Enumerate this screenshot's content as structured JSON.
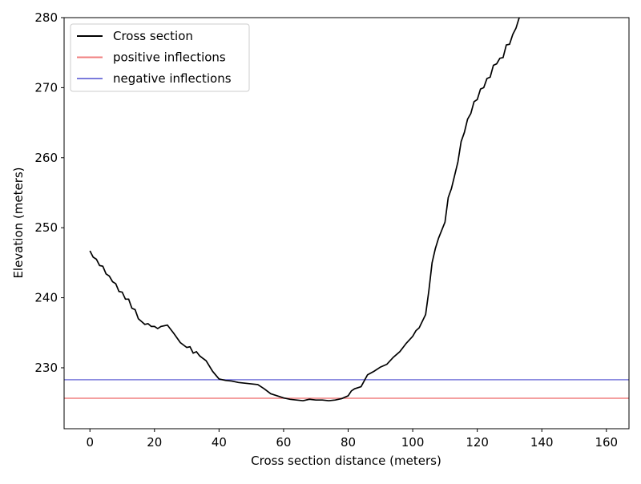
{
  "chart_data": {
    "type": "line",
    "xlabel": "Cross section distance (meters)",
    "ylabel": "Elevation (meters)",
    "x": [
      0,
      1,
      2,
      3,
      4,
      5,
      6,
      7,
      8,
      9,
      10,
      11,
      12,
      13,
      14,
      15,
      16,
      17,
      18,
      19,
      20,
      21,
      22,
      24,
      26,
      28,
      30,
      31,
      32,
      33,
      34,
      36,
      38,
      40,
      42,
      44,
      46,
      48,
      50,
      52,
      54,
      56,
      58,
      60,
      62,
      64,
      66,
      68,
      70,
      72,
      74,
      76,
      78,
      80,
      81,
      82,
      84,
      86,
      88,
      90,
      92,
      94,
      96,
      98,
      100,
      101,
      102,
      104,
      105,
      106,
      107,
      108,
      110,
      111,
      112,
      113,
      114,
      115,
      116,
      117,
      118,
      119,
      120,
      121,
      122,
      123,
      124,
      125,
      126,
      127,
      128,
      129,
      130,
      131,
      132,
      133,
      134
    ],
    "series": [
      {
        "name": "Cross section",
        "color": "#000000",
        "values": [
          246.7,
          245.8,
          245.5,
          244.6,
          244.5,
          243.4,
          243.1,
          242.3,
          242.0,
          240.9,
          240.8,
          239.8,
          239.8,
          238.5,
          238.3,
          237.0,
          236.6,
          236.2,
          236.3,
          235.9,
          235.9,
          235.6,
          235.9,
          236.1,
          234.9,
          233.6,
          232.9,
          233.0,
          232.1,
          232.3,
          231.7,
          231.0,
          229.5,
          228.4,
          228.2,
          228.1,
          227.9,
          227.8,
          227.7,
          227.6,
          227.0,
          226.3,
          226.0,
          225.7,
          225.5,
          225.4,
          225.3,
          225.5,
          225.4,
          225.4,
          225.3,
          225.4,
          225.6,
          226.0,
          226.7,
          227.0,
          227.3,
          229.0,
          229.5,
          230.1,
          230.5,
          231.5,
          232.3,
          233.5,
          234.5,
          235.3,
          235.7,
          237.6,
          241.0,
          245.0,
          247.0,
          248.5,
          250.8,
          254.3,
          255.6,
          257.5,
          259.4,
          262.3,
          263.6,
          265.5,
          266.3,
          268.0,
          268.3,
          269.8,
          270.0,
          271.3,
          271.5,
          273.2,
          273.4,
          274.2,
          274.3,
          276.1,
          276.2,
          277.6,
          278.5,
          280.0,
          280.3
        ]
      }
    ],
    "hlines": [
      {
        "name": "positive inflections",
        "color": "#f08080",
        "value": 225.65
      },
      {
        "name": "negative inflections",
        "color": "#7b7bdc",
        "value": 228.3
      }
    ],
    "xlim": [
      -8,
      167
    ],
    "ylim": [
      221.3,
      280
    ],
    "xticks": [
      0,
      20,
      40,
      60,
      80,
      100,
      120,
      140,
      160
    ],
    "yticks": [
      230,
      240,
      250,
      260,
      270,
      280
    ],
    "legend": "upper-left"
  }
}
